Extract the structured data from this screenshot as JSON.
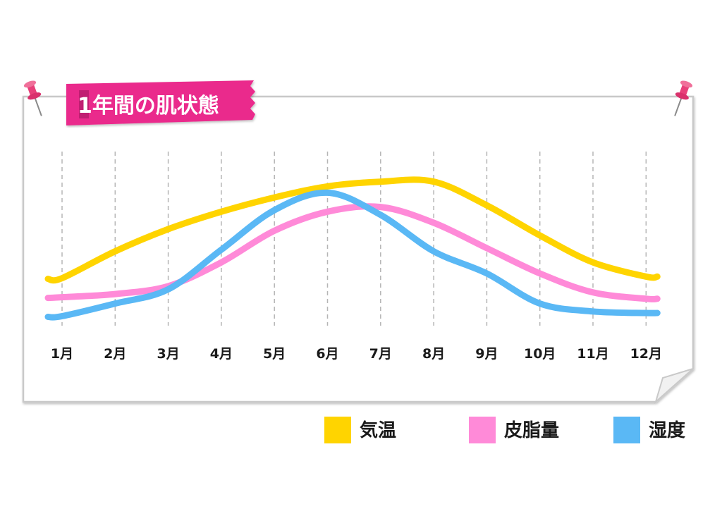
{
  "chart_data": {
    "type": "line",
    "title": "1年間の肌状態",
    "categories": [
      "1月",
      "2月",
      "3月",
      "4月",
      "5月",
      "6月",
      "7月",
      "8月",
      "9月",
      "10月",
      "11月",
      "12月"
    ],
    "series": [
      {
        "name": "気温",
        "color": "#ffd400",
        "values": [
          20,
          37,
          51,
          62,
          71,
          78,
          81,
          81,
          66,
          47,
          30,
          21
        ]
      },
      {
        "name": "皮脂量",
        "color": "#ff8ad8",
        "values": [
          8,
          10,
          15,
          30,
          50,
          62,
          65,
          55,
          39,
          23,
          11,
          7
        ]
      },
      {
        "name": "湿度",
        "color": "#5ab8f5",
        "values": [
          -4,
          4,
          13,
          38,
          63,
          74,
          60,
          37,
          23,
          4,
          -1,
          -2
        ]
      }
    ],
    "ylim": [
      -10,
      100
    ],
    "xlabel": "",
    "ylabel": "",
    "grid": "vertical-dashed",
    "legend": "bottom-right"
  }
}
